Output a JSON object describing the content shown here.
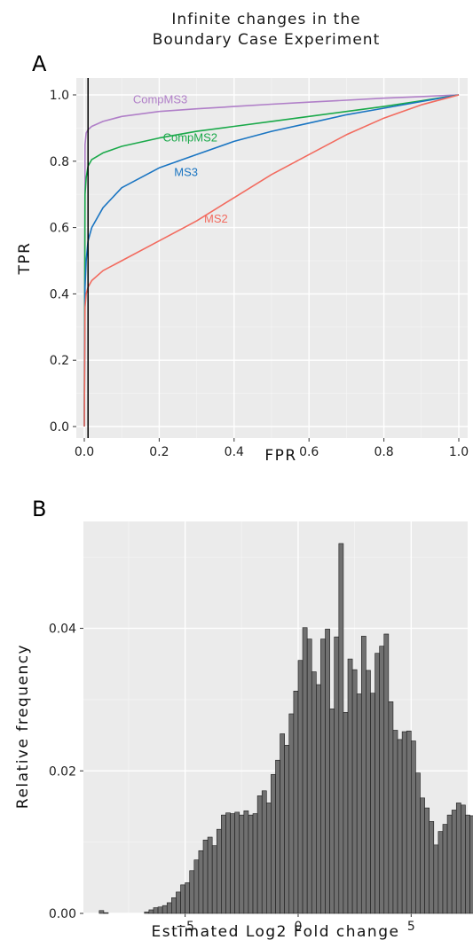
{
  "title_line1": "Infinite changes in the",
  "title_line2": "Boundary Case Experiment",
  "chart_data": [
    {
      "panel": "A",
      "type": "line",
      "xlabel": "FPR",
      "ylabel": "TPR",
      "xlim": [
        0,
        1
      ],
      "ylim": [
        0,
        1
      ],
      "xticks": [
        "0.0",
        "0.2",
        "0.4",
        "0.6",
        "0.8",
        "1.0"
      ],
      "yticks": [
        "0.0",
        "0.2",
        "0.4",
        "0.6",
        "0.8",
        "1.0"
      ],
      "vline_x": 0.01,
      "vline_color": "#000000",
      "series": [
        {
          "name": "CompMS3",
          "color": "#b07fc8",
          "x": [
            0,
            0.002,
            0.005,
            0.01,
            0.02,
            0.05,
            0.1,
            0.2,
            0.3,
            0.4,
            0.5,
            0.6,
            0.7,
            0.8,
            0.9,
            1.0
          ],
          "y": [
            0,
            0.85,
            0.885,
            0.895,
            0.905,
            0.92,
            0.935,
            0.95,
            0.958,
            0.965,
            0.972,
            0.978,
            0.984,
            0.99,
            0.995,
            1.0
          ]
        },
        {
          "name": "CompMS2",
          "color": "#1aa94a",
          "x": [
            0,
            0.002,
            0.005,
            0.01,
            0.02,
            0.05,
            0.1,
            0.2,
            0.3,
            0.4,
            0.5,
            0.6,
            0.7,
            0.8,
            0.9,
            1.0
          ],
          "y": [
            0,
            0.7,
            0.75,
            0.785,
            0.805,
            0.825,
            0.845,
            0.87,
            0.89,
            0.905,
            0.92,
            0.935,
            0.95,
            0.965,
            0.982,
            1.0
          ]
        },
        {
          "name": "MS3",
          "color": "#1a75c2",
          "x": [
            0,
            0.002,
            0.005,
            0.01,
            0.02,
            0.05,
            0.1,
            0.2,
            0.3,
            0.4,
            0.5,
            0.6,
            0.7,
            0.8,
            0.9,
            1.0
          ],
          "y": [
            0,
            0.42,
            0.5,
            0.56,
            0.6,
            0.66,
            0.72,
            0.78,
            0.82,
            0.86,
            0.89,
            0.915,
            0.94,
            0.96,
            0.98,
            1.0
          ]
        },
        {
          "name": "MS2",
          "color": "#f26b5f",
          "x": [
            0,
            0.002,
            0.005,
            0.01,
            0.02,
            0.05,
            0.1,
            0.2,
            0.3,
            0.4,
            0.5,
            0.6,
            0.7,
            0.8,
            0.9,
            1.0
          ],
          "y": [
            0,
            0.36,
            0.4,
            0.42,
            0.44,
            0.47,
            0.5,
            0.56,
            0.62,
            0.69,
            0.76,
            0.82,
            0.88,
            0.93,
            0.97,
            1.0
          ]
        }
      ],
      "series_label_positions": [
        {
          "name": "CompMS3",
          "x": 0.13,
          "y": 0.975
        },
        {
          "name": "CompMS2",
          "x": 0.21,
          "y": 0.86
        },
        {
          "name": "MS3",
          "x": 0.24,
          "y": 0.755
        },
        {
          "name": "MS2",
          "x": 0.32,
          "y": 0.615
        }
      ]
    },
    {
      "panel": "B",
      "type": "bar",
      "xlabel": "Estimated Log2 Fold change",
      "ylabel": "Relative frequency",
      "xlim": [
        -9.5,
        7.5
      ],
      "ylim": [
        0,
        0.055
      ],
      "xticks": [
        -5,
        0,
        5
      ],
      "xtick_labels": [
        "−5",
        "0",
        "5"
      ],
      "yticks": [
        0,
        0.02,
        0.04
      ],
      "ytick_labels": [
        "0.00",
        "0.02",
        "0.04"
      ],
      "bar_color": "#707070",
      "bin_start": -8.8,
      "bin_width": 0.2,
      "values": [
        0.0004,
        0.0001,
        0,
        0,
        0,
        0,
        0,
        0,
        0,
        0,
        0.0002,
        0.0005,
        0.0008,
        0.0009,
        0.0011,
        0.0015,
        0.0022,
        0.003,
        0.004,
        0.0043,
        0.006,
        0.0075,
        0.0088,
        0.0103,
        0.0107,
        0.0095,
        0.0118,
        0.0138,
        0.0141,
        0.014,
        0.0142,
        0.0138,
        0.0144,
        0.0138,
        0.014,
        0.0165,
        0.0172,
        0.0155,
        0.0195,
        0.0215,
        0.0252,
        0.0236,
        0.028,
        0.0312,
        0.0355,
        0.0401,
        0.0385,
        0.0339,
        0.0321,
        0.0385,
        0.0399,
        0.0287,
        0.0388,
        0.0519,
        0.0282,
        0.0357,
        0.0342,
        0.0308,
        0.0389,
        0.0341,
        0.0309,
        0.0365,
        0.0375,
        0.0392,
        0.0297,
        0.0257,
        0.0244,
        0.0255,
        0.0256,
        0.0242,
        0.0197,
        0.0162,
        0.0148,
        0.0129,
        0.0096,
        0.0115,
        0.0125,
        0.0138,
        0.0145,
        0.0155,
        0.0152,
        0.0138,
        0.0137,
        0.0135,
        0.0112,
        0.0103,
        0.0088,
        0.0064,
        0.005,
        0.0039,
        0.003,
        0.0024,
        0.0018,
        0.0011
      ]
    }
  ]
}
